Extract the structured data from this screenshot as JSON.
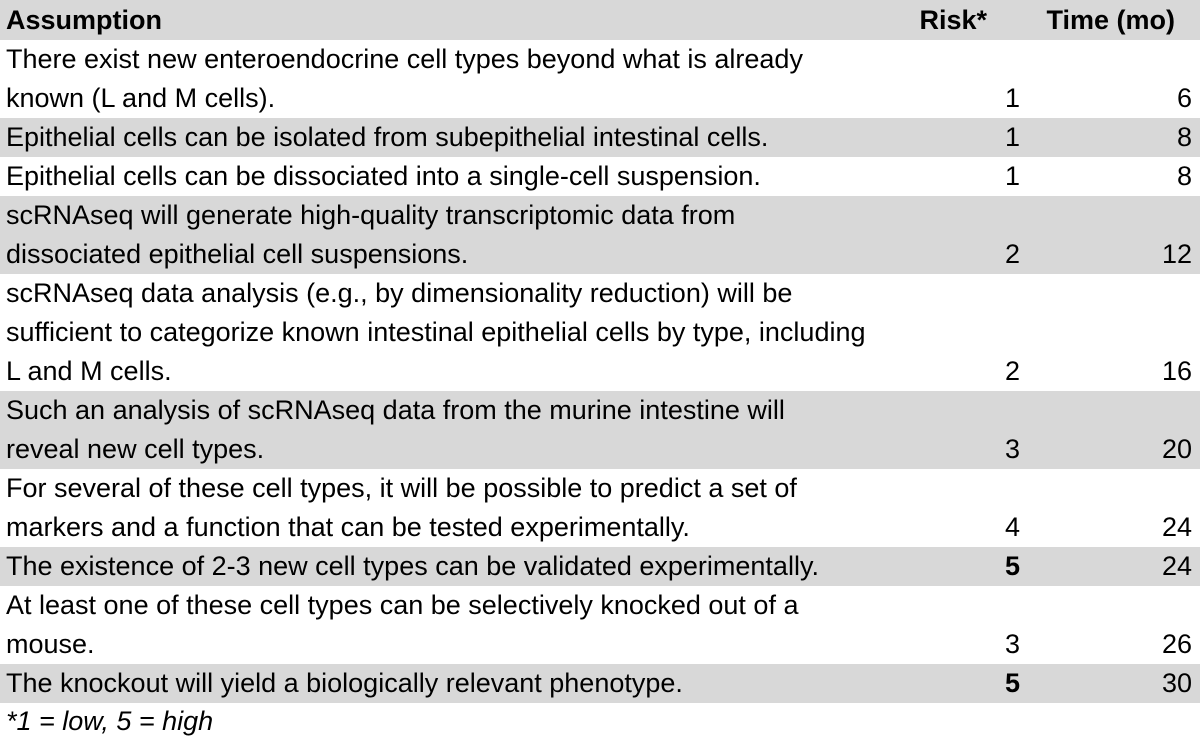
{
  "table": {
    "headers": {
      "assumption": "Assumption",
      "risk": "Risk*",
      "time": "Time (mo)"
    },
    "rows": [
      {
        "assumption": "There exist new enteroendocrine cell types beyond what is already\nknown (L and M cells).",
        "risk": "1",
        "time": "6",
        "risk_bold": false
      },
      {
        "assumption": "Epithelial cells can be isolated from subepithelial intestinal cells.",
        "risk": "1",
        "time": "8",
        "risk_bold": false
      },
      {
        "assumption": "Epithelial cells can be dissociated into a single-cell suspension.",
        "risk": "1",
        "time": "8",
        "risk_bold": false
      },
      {
        "assumption": "scRNAseq will generate high-quality transcriptomic data from\ndissociated epithelial cell suspensions.",
        "risk": "2",
        "time": "12",
        "risk_bold": false
      },
      {
        "assumption": "scRNAseq data analysis (e.g., by dimensionality reduction) will be\nsufficient to categorize known intestinal epithelial cells by type, including\nL and M cells.",
        "risk": "2",
        "time": "16",
        "risk_bold": false
      },
      {
        "assumption": "Such an analysis of scRNAseq data from the murine intestine will\nreveal new cell types.",
        "risk": "3",
        "time": "20",
        "risk_bold": false
      },
      {
        "assumption": "For several of these cell types, it will be possible to predict a set of\nmarkers and a function that can be tested experimentally.",
        "risk": "4",
        "time": "24",
        "risk_bold": false
      },
      {
        "assumption": "The existence of 2-3 new cell types can be validated experimentally.",
        "risk": "5",
        "time": "24",
        "risk_bold": true
      },
      {
        "assumption": "At least one of these cell types can be selectively knocked out of a\nmouse.",
        "risk": "3",
        "time": "26",
        "risk_bold": false
      },
      {
        "assumption": "The knockout will yield a biologically relevant phenotype.",
        "risk": "5",
        "time": "30",
        "risk_bold": true
      }
    ],
    "footnote": "*1 = low, 5 = high"
  },
  "colors": {
    "row_shade": "#d8d8d8",
    "text": "#000000",
    "background": "#ffffff"
  }
}
